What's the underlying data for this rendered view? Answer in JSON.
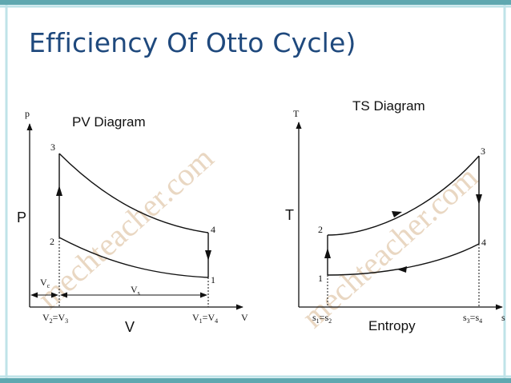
{
  "slide": {
    "title": "Efficiency Of Otto Cycle)",
    "watermark": "mechteacher.com"
  },
  "pv_diagram": {
    "title": "PV Diagram",
    "axis_p_small": "p",
    "axis_p_big": "P",
    "axis_v_small": "V",
    "axis_v_big": "V",
    "points": {
      "p1": "1",
      "p2": "2",
      "p3": "3",
      "p4": "4"
    },
    "vc_label": "V",
    "vc_sub": "c",
    "vs_label": "V",
    "vs_sub": "s",
    "v23_label": "V",
    "v23_sub_a": "2",
    "v23_eq": "=V",
    "v23_sub_b": "3",
    "v14_label": "V",
    "v14_sub_a": "1",
    "v14_eq": "=V",
    "v14_sub_b": "4"
  },
  "ts_diagram": {
    "title": "TS Diagram",
    "axis_t_small": "T",
    "axis_t_big": "T",
    "axis_s_small": "s",
    "axis_s_big": "Entropy",
    "points": {
      "p1": "1",
      "p2": "2",
      "p3": "3",
      "p4": "4"
    },
    "s12_label": "s",
    "s12_sub_a": "1",
    "s12_eq": "=s",
    "s12_sub_b": "2",
    "s34_label": "s",
    "s34_sub_a": "3",
    "s34_eq": "=s",
    "s34_sub_b": "4"
  },
  "colors": {
    "title": "#1f497d",
    "frame_teal": "#5fa8b0",
    "frame_light": "#bfe3e8",
    "ink": "#111111",
    "watermark": "#e9d7c2"
  }
}
